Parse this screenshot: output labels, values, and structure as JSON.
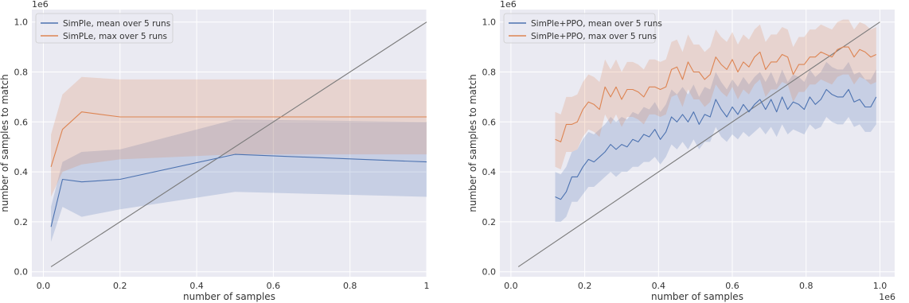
{
  "chart_data": [
    {
      "type": "line",
      "xlabel": "number of samples",
      "ylabel": "number of samples to match",
      "x_offset_text": "",
      "y_offset_text": "1e6",
      "xlim": [
        -0.03,
        1.0
      ],
      "ylim": [
        -0.02,
        1.05
      ],
      "xticks": [
        0.0,
        0.2,
        0.4,
        0.6,
        0.8,
        1.0
      ],
      "xtick_labels": [
        "0.0",
        "0.2",
        "0.4",
        "0.6",
        "0.8",
        "1"
      ],
      "yticks": [
        0.0,
        0.2,
        0.4,
        0.6,
        0.8,
        1.0
      ],
      "ytick_labels": [
        "0.0",
        "0.2",
        "0.4",
        "0.6",
        "0.8",
        "1.0"
      ],
      "grid": true,
      "legend_position": "top-left",
      "diagonal": [
        [
          0.02,
          0.02
        ],
        [
          1.0,
          1.0
        ]
      ],
      "series": [
        {
          "name": "SimPle, mean over 5 runs",
          "color": "#4c72b0",
          "x": [
            0.02,
            0.05,
            0.1,
            0.2,
            0.5,
            1.0
          ],
          "y": [
            0.18,
            0.37,
            0.36,
            0.37,
            0.47,
            0.44
          ],
          "lower": [
            0.12,
            0.26,
            0.22,
            0.25,
            0.32,
            0.3
          ],
          "upper": [
            0.26,
            0.44,
            0.48,
            0.49,
            0.61,
            0.6
          ]
        },
        {
          "name": "SimPLe, max over 5 runs",
          "color": "#dd8452",
          "x": [
            0.02,
            0.05,
            0.1,
            0.2,
            0.5,
            1.0
          ],
          "y": [
            0.42,
            0.57,
            0.64,
            0.62,
            0.62,
            0.62
          ],
          "lower": [
            0.3,
            0.4,
            0.43,
            0.45,
            0.47,
            0.47
          ],
          "upper": [
            0.55,
            0.71,
            0.78,
            0.77,
            0.77,
            0.77
          ]
        }
      ]
    },
    {
      "type": "line",
      "xlabel": "number of samples",
      "ylabel": "number of samples to match",
      "x_offset_text": "1e6",
      "y_offset_text": "1e6",
      "xlim": [
        -0.03,
        1.04
      ],
      "ylim": [
        -0.02,
        1.05
      ],
      "xticks": [
        0.0,
        0.2,
        0.4,
        0.6,
        0.8,
        1.0
      ],
      "xtick_labels": [
        "0.0",
        "0.2",
        "0.4",
        "0.6",
        "0.8",
        "1.0"
      ],
      "yticks": [
        0.0,
        0.2,
        0.4,
        0.6,
        0.8,
        1.0
      ],
      "ytick_labels": [
        "0.0",
        "0.2",
        "0.4",
        "0.6",
        "0.8",
        "1.0"
      ],
      "grid": true,
      "legend_position": "top-left",
      "diagonal": [
        [
          0.02,
          0.02
        ],
        [
          1.0,
          1.0
        ]
      ],
      "series": [
        {
          "name": "SimPle+PPO, mean over 5 runs",
          "color": "#4c72b0",
          "x": [
            0.12,
            0.135,
            0.15,
            0.165,
            0.18,
            0.195,
            0.21,
            0.225,
            0.24,
            0.255,
            0.27,
            0.285,
            0.3,
            0.315,
            0.33,
            0.345,
            0.36,
            0.375,
            0.39,
            0.405,
            0.42,
            0.435,
            0.45,
            0.465,
            0.48,
            0.495,
            0.51,
            0.525,
            0.54,
            0.555,
            0.57,
            0.585,
            0.6,
            0.615,
            0.63,
            0.645,
            0.66,
            0.675,
            0.69,
            0.705,
            0.72,
            0.735,
            0.75,
            0.765,
            0.78,
            0.795,
            0.81,
            0.825,
            0.84,
            0.855,
            0.87,
            0.885,
            0.9,
            0.915,
            0.93,
            0.945,
            0.96,
            0.975,
            0.99
          ],
          "y": [
            0.3,
            0.29,
            0.32,
            0.38,
            0.38,
            0.42,
            0.45,
            0.44,
            0.46,
            0.48,
            0.51,
            0.49,
            0.51,
            0.5,
            0.53,
            0.52,
            0.55,
            0.54,
            0.57,
            0.53,
            0.56,
            0.62,
            0.6,
            0.63,
            0.6,
            0.64,
            0.59,
            0.63,
            0.62,
            0.69,
            0.65,
            0.62,
            0.66,
            0.63,
            0.67,
            0.64,
            0.67,
            0.69,
            0.65,
            0.69,
            0.64,
            0.7,
            0.65,
            0.68,
            0.67,
            0.65,
            0.7,
            0.67,
            0.69,
            0.73,
            0.71,
            0.7,
            0.7,
            0.73,
            0.68,
            0.69,
            0.66,
            0.66,
            0.7
          ],
          "lower": [
            0.2,
            0.2,
            0.22,
            0.28,
            0.28,
            0.31,
            0.34,
            0.34,
            0.36,
            0.38,
            0.4,
            0.38,
            0.4,
            0.4,
            0.42,
            0.42,
            0.44,
            0.44,
            0.46,
            0.43,
            0.46,
            0.51,
            0.49,
            0.52,
            0.49,
            0.53,
            0.49,
            0.52,
            0.52,
            0.58,
            0.54,
            0.52,
            0.55,
            0.53,
            0.56,
            0.54,
            0.56,
            0.58,
            0.55,
            0.58,
            0.54,
            0.59,
            0.55,
            0.57,
            0.56,
            0.55,
            0.59,
            0.57,
            0.58,
            0.62,
            0.6,
            0.59,
            0.59,
            0.62,
            0.58,
            0.59,
            0.56,
            0.56,
            0.59
          ],
          "upper": [
            0.4,
            0.39,
            0.42,
            0.48,
            0.49,
            0.53,
            0.56,
            0.55,
            0.57,
            0.59,
            0.62,
            0.6,
            0.62,
            0.61,
            0.64,
            0.63,
            0.66,
            0.65,
            0.68,
            0.64,
            0.67,
            0.73,
            0.71,
            0.74,
            0.71,
            0.75,
            0.7,
            0.74,
            0.73,
            0.8,
            0.76,
            0.73,
            0.77,
            0.74,
            0.78,
            0.75,
            0.78,
            0.8,
            0.76,
            0.8,
            0.75,
            0.81,
            0.76,
            0.79,
            0.78,
            0.76,
            0.81,
            0.78,
            0.8,
            0.84,
            0.82,
            0.81,
            0.81,
            0.84,
            0.79,
            0.8,
            0.77,
            0.77,
            0.81
          ]
        },
        {
          "name": "SimPle+PPO, max over 5 runs",
          "color": "#dd8452",
          "x": [
            0.12,
            0.135,
            0.15,
            0.165,
            0.18,
            0.195,
            0.21,
            0.225,
            0.24,
            0.255,
            0.27,
            0.285,
            0.3,
            0.315,
            0.33,
            0.345,
            0.36,
            0.375,
            0.39,
            0.405,
            0.42,
            0.435,
            0.45,
            0.465,
            0.48,
            0.495,
            0.51,
            0.525,
            0.54,
            0.555,
            0.57,
            0.585,
            0.6,
            0.615,
            0.63,
            0.645,
            0.66,
            0.675,
            0.69,
            0.705,
            0.72,
            0.735,
            0.75,
            0.765,
            0.78,
            0.795,
            0.81,
            0.825,
            0.84,
            0.855,
            0.87,
            0.885,
            0.9,
            0.915,
            0.93,
            0.945,
            0.96,
            0.975,
            0.99
          ],
          "y": [
            0.53,
            0.52,
            0.59,
            0.59,
            0.6,
            0.65,
            0.68,
            0.67,
            0.65,
            0.74,
            0.7,
            0.74,
            0.69,
            0.73,
            0.73,
            0.72,
            0.7,
            0.74,
            0.74,
            0.73,
            0.74,
            0.81,
            0.82,
            0.77,
            0.84,
            0.8,
            0.8,
            0.77,
            0.79,
            0.86,
            0.83,
            0.81,
            0.85,
            0.8,
            0.84,
            0.82,
            0.86,
            0.88,
            0.81,
            0.84,
            0.84,
            0.87,
            0.86,
            0.79,
            0.83,
            0.83,
            0.86,
            0.86,
            0.88,
            0.87,
            0.86,
            0.89,
            0.9,
            0.9,
            0.86,
            0.89,
            0.88,
            0.86,
            0.87
          ],
          "lower": [
            0.42,
            0.41,
            0.48,
            0.48,
            0.49,
            0.54,
            0.57,
            0.56,
            0.54,
            0.63,
            0.59,
            0.63,
            0.58,
            0.62,
            0.62,
            0.61,
            0.59,
            0.63,
            0.63,
            0.62,
            0.63,
            0.7,
            0.71,
            0.66,
            0.73,
            0.69,
            0.69,
            0.66,
            0.68,
            0.75,
            0.72,
            0.7,
            0.74,
            0.69,
            0.73,
            0.71,
            0.75,
            0.77,
            0.7,
            0.73,
            0.73,
            0.76,
            0.75,
            0.68,
            0.72,
            0.72,
            0.75,
            0.75,
            0.77,
            0.76,
            0.75,
            0.78,
            0.79,
            0.79,
            0.75,
            0.78,
            0.77,
            0.75,
            0.76
          ],
          "upper": [
            0.64,
            0.63,
            0.7,
            0.7,
            0.71,
            0.76,
            0.79,
            0.78,
            0.76,
            0.85,
            0.81,
            0.85,
            0.8,
            0.84,
            0.84,
            0.83,
            0.81,
            0.85,
            0.85,
            0.84,
            0.85,
            0.92,
            0.93,
            0.88,
            0.95,
            0.91,
            0.91,
            0.88,
            0.9,
            0.97,
            0.94,
            0.92,
            0.96,
            0.91,
            0.95,
            0.93,
            0.97,
            0.99,
            0.92,
            0.95,
            0.95,
            0.98,
            0.97,
            0.9,
            0.94,
            0.94,
            0.97,
            0.97,
            0.99,
            0.98,
            0.97,
            1.0,
            1.01,
            1.01,
            0.97,
            1.0,
            0.99,
            0.97,
            0.98
          ]
        }
      ]
    }
  ]
}
